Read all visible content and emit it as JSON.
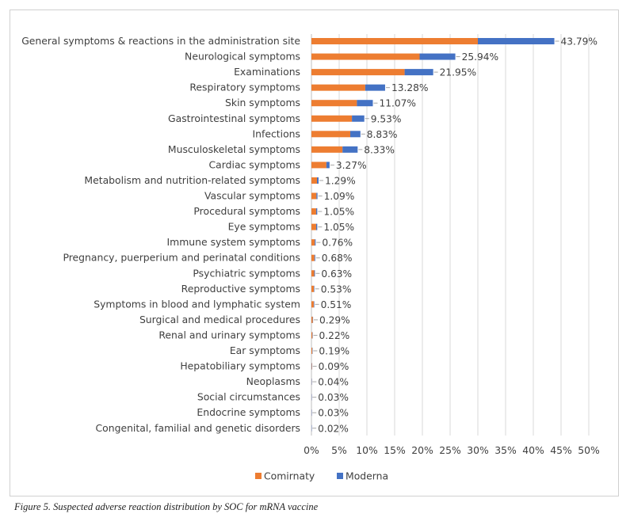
{
  "caption": "Figure 5. Suspected adverse reaction distribution by SOC for mRNA vaccine",
  "chart_data": {
    "type": "bar",
    "orientation": "horizontal",
    "stacked": true,
    "categories": [
      "General symptoms & reactions in the administration site",
      "Neurological symptoms",
      "Examinations",
      "Respiratory symptoms",
      "Skin symptoms",
      "Gastrointestinal symptoms",
      "Infections",
      "Musculoskeletal symptoms",
      "Cardiac symptoms",
      "Metabolism and nutrition-related symptoms",
      "Vascular symptoms",
      "Procedural symptoms",
      "Eye symptoms",
      "Immune system symptoms",
      "Pregnancy, puerperium and perinatal conditions",
      "Psychiatric symptoms",
      "Reproductive symptoms",
      "Symptoms in blood and lymphatic system",
      "Surgical and medical procedures",
      "Renal and urinary symptoms",
      "Ear symptoms",
      "Hepatobiliary symptoms",
      "Neoplasms",
      "Social circumstances",
      "Endocrine symptoms",
      "Congenital, familial and genetic disorders"
    ],
    "series": [
      {
        "name": "Comirnaty",
        "color": "#ED7D31",
        "values": [
          30.0,
          19.5,
          16.8,
          9.7,
          8.2,
          7.3,
          7.0,
          5.6,
          2.7,
          1.0,
          0.9,
          0.85,
          0.85,
          0.6,
          0.55,
          0.5,
          0.45,
          0.42,
          0.24,
          0.18,
          0.15,
          0.07,
          0.03,
          0.02,
          0.02,
          0.015
        ]
      },
      {
        "name": "Moderna",
        "color": "#4472C4",
        "values": [
          13.79,
          6.44,
          5.15,
          3.58,
          2.87,
          2.23,
          1.83,
          2.73,
          0.57,
          0.29,
          0.19,
          0.2,
          0.2,
          0.16,
          0.13,
          0.13,
          0.08,
          0.09,
          0.05,
          0.04,
          0.04,
          0.02,
          0.01,
          0.01,
          0.01,
          0.005
        ]
      }
    ],
    "data_labels": [
      "43.79%",
      "25.94%",
      "21.95%",
      "13.28%",
      "11.07%",
      "9.53%",
      "8.83%",
      "8.33%",
      "3.27%",
      "1.29%",
      "1.09%",
      "1.05%",
      "1.05%",
      "0.76%",
      "0.68%",
      "0.63%",
      "0.53%",
      "0.51%",
      "0.29%",
      "0.22%",
      "0.19%",
      "0.09%",
      "0.04%",
      "0.03%",
      "0.03%",
      "0.02%"
    ],
    "totals": [
      43.79,
      25.94,
      21.95,
      13.28,
      11.07,
      9.53,
      8.83,
      8.33,
      3.27,
      1.29,
      1.09,
      1.05,
      1.05,
      0.76,
      0.68,
      0.63,
      0.53,
      0.51,
      0.29,
      0.22,
      0.19,
      0.09,
      0.04,
      0.03,
      0.03,
      0.02
    ],
    "xlim": [
      0,
      50
    ],
    "xticks": [
      "0%",
      "5%",
      "10%",
      "15%",
      "20%",
      "25%",
      "30%",
      "35%",
      "40%",
      "45%",
      "50%"
    ],
    "grid": true,
    "legend": "bottom",
    "title": "",
    "xlabel": "",
    "ylabel": ""
  }
}
